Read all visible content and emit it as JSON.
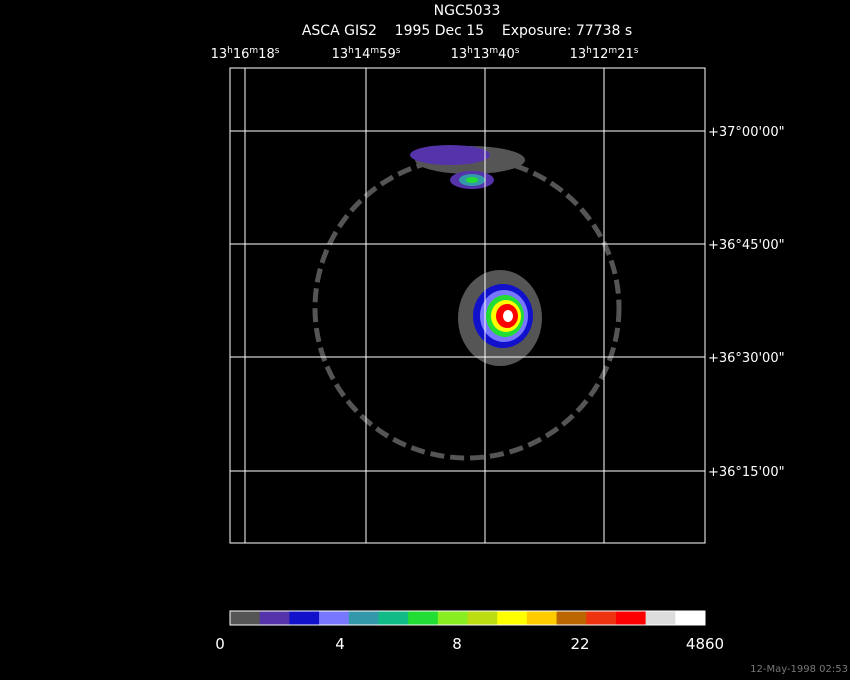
{
  "header": {
    "title": "NGC5033",
    "subtitle": "ASCA GIS2    1995 Dec 15    Exposure: 77738 s"
  },
  "ra_labels": [
    [
      "13",
      "h",
      "16",
      "m",
      "18",
      "s"
    ],
    [
      "13",
      "h",
      "14",
      "m",
      "59",
      "s"
    ],
    [
      "13",
      "h",
      "13",
      "m",
      "40",
      "s"
    ],
    [
      "13",
      "h",
      "12",
      "m",
      "21",
      "s"
    ]
  ],
  "dec_labels": [
    "+37°00'00\"",
    "+36°45'00\"",
    "+36°30'00\"",
    "+36°15'00\""
  ],
  "colorbar": {
    "colors": [
      "#555555",
      "#5533aa",
      "#1111cc",
      "#7777ff",
      "#3399aa",
      "#11bb88",
      "#22dd33",
      "#88ee22",
      "#bbdd11",
      "#ffff00",
      "#ffcc00",
      "#bb6600",
      "#ee3311",
      "#ff0000",
      "#dddddd",
      "#ffffff"
    ],
    "labels": [
      "0",
      "4",
      "8",
      "22",
      "4860"
    ]
  },
  "footer": {
    "timestamp": "12-May-1998 02:53"
  }
}
